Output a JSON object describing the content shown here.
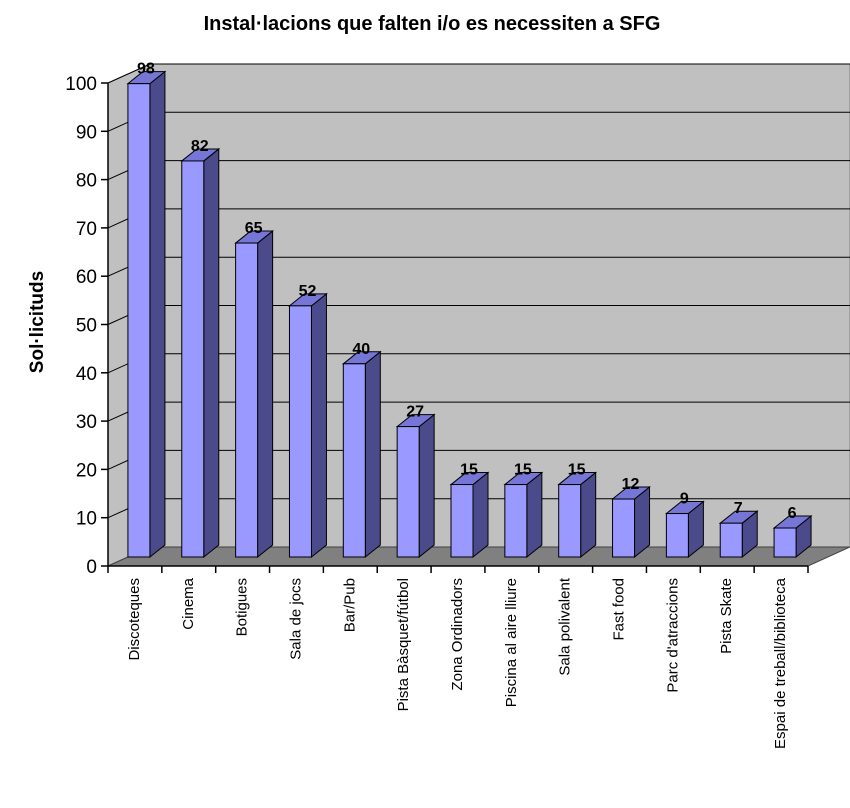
{
  "chart_data": {
    "type": "bar",
    "title": "Instal·lacions que falten i/o es necessiten a SFG",
    "ylabel": "Sol·licituds",
    "xlabel": "",
    "ylim": [
      0,
      100
    ],
    "yticks": [
      0,
      10,
      20,
      30,
      40,
      50,
      60,
      70,
      80,
      90,
      100
    ],
    "grid": true,
    "style": "3d-column",
    "colors": {
      "bar_front": "#9999ff",
      "bar_side": "#4b4b8c",
      "bar_top": "#7676d6",
      "plot_back": "#c0c0c0",
      "floor": "#808080"
    },
    "categories": [
      "Discoteques",
      "Cinema",
      "Botigues",
      "Sala de jocs",
      "Bar/Pub",
      "Pista Bàsquet/fútbol",
      "Zona Ordinadors",
      "Piscina al aire lliure",
      "Sala polivalent",
      "Fast food",
      "Parc d'atraccions",
      "Pista Skate",
      "Espai de treball/biblioteca"
    ],
    "values": [
      98,
      82,
      65,
      52,
      40,
      27,
      15,
      15,
      15,
      12,
      9,
      7,
      6
    ]
  }
}
